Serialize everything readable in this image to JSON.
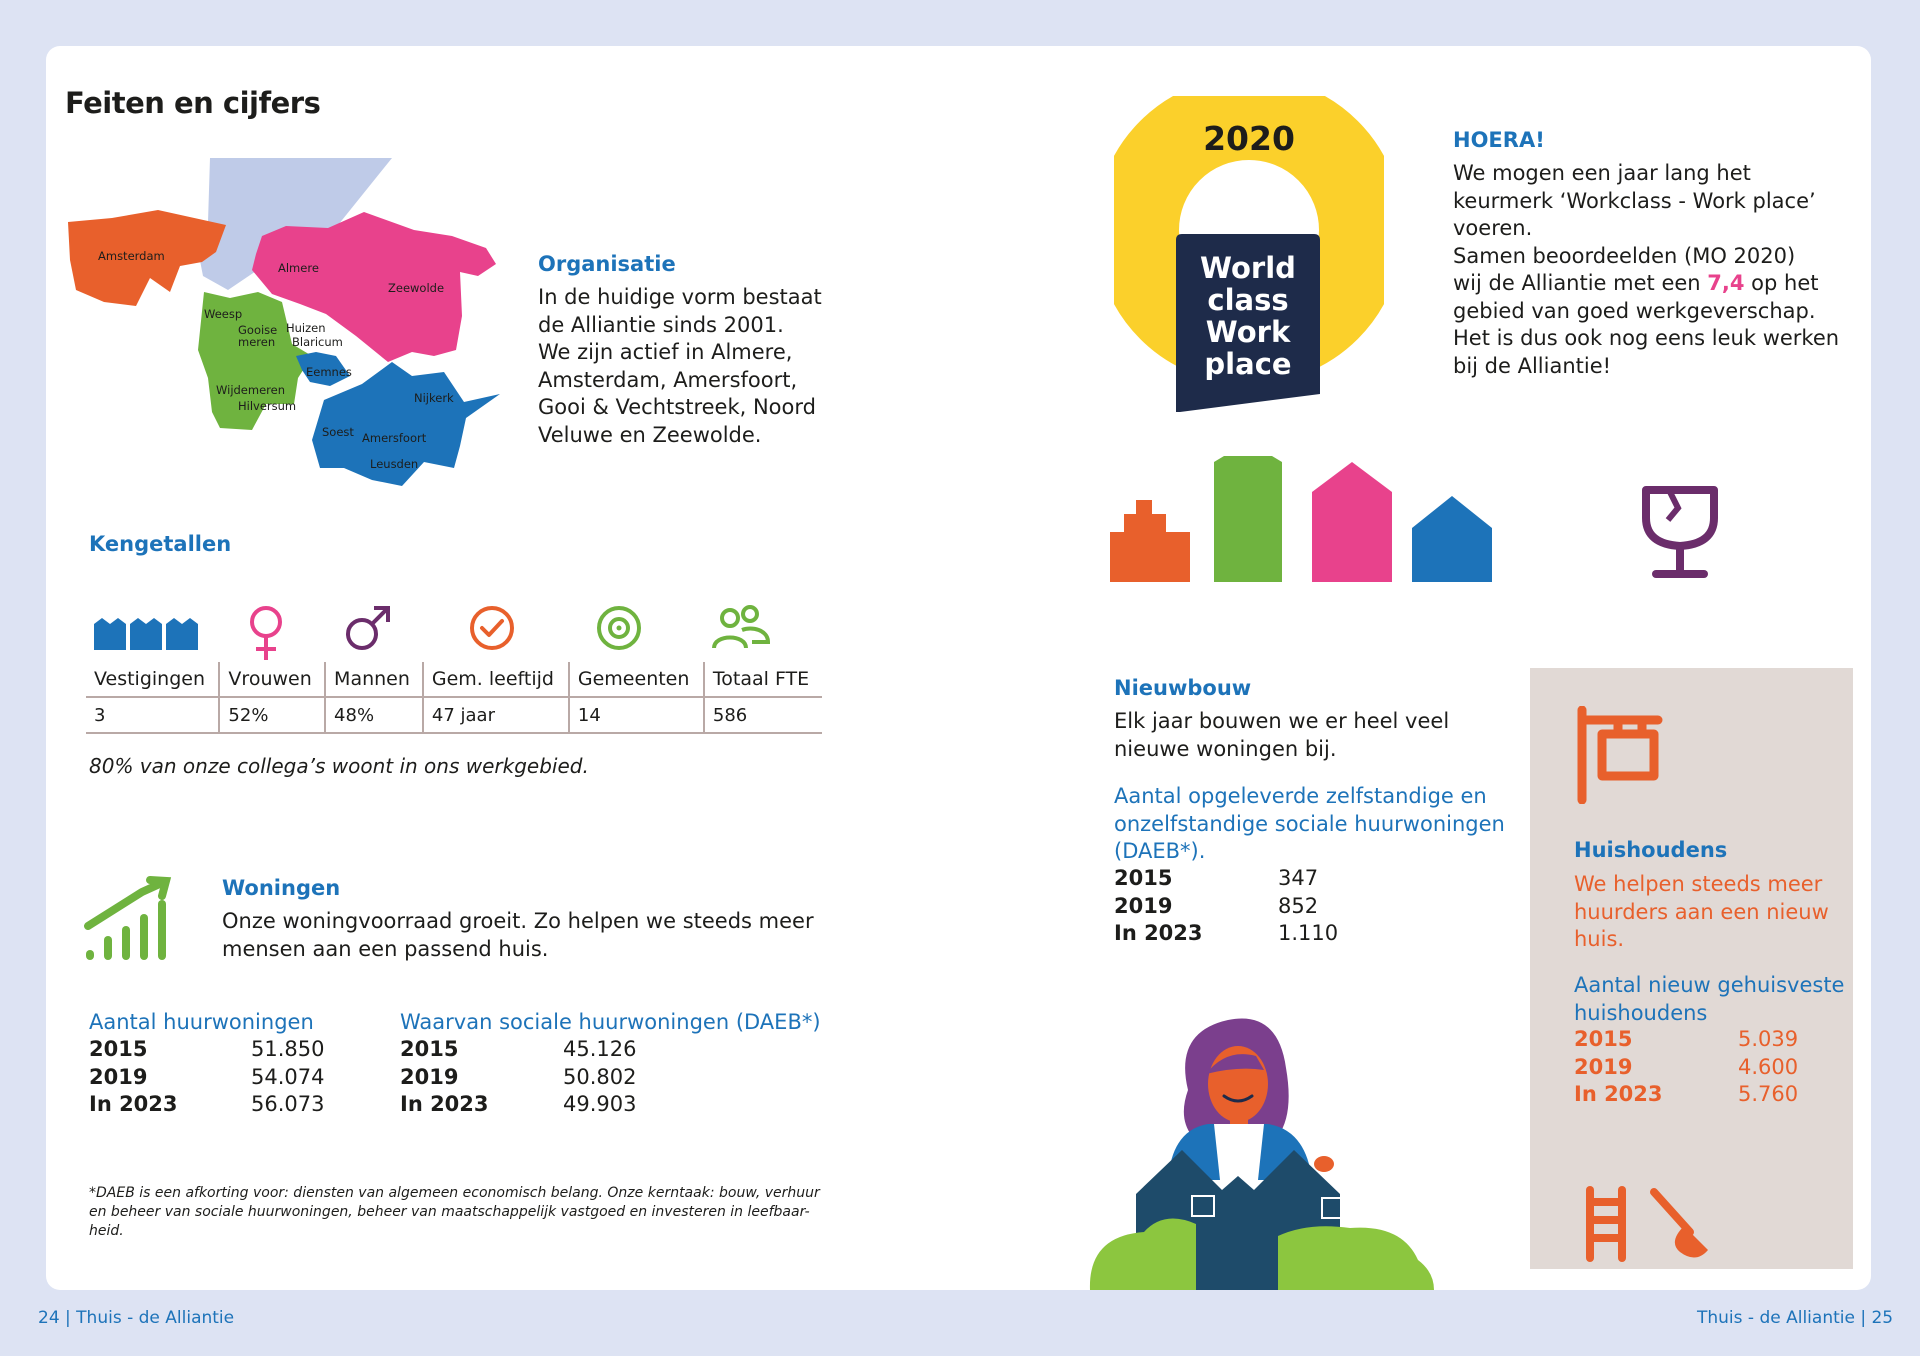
{
  "page": {
    "title": "Feiten en cijfers",
    "footer_left": "24 | Thuis - de Alliantie",
    "footer_right": "Thuis - de Alliantie | 25"
  },
  "organisatie": {
    "heading": "Organisatie",
    "text_lines": [
      "In de huidige vorm bestaat",
      "de Alliantie sinds 2001.",
      "We zijn actief in Almere,",
      "Amsterdam, Amersfoort,",
      "Gooi & Vechtstreek, Noord",
      "Veluwe en Zeewolde."
    ]
  },
  "map": {
    "labels": {
      "amsterdam": "Amsterdam",
      "almere": "Almere",
      "zeewolde": "Zeewolde",
      "weesp": "Weesp",
      "gooise_meren_1": "Gooise",
      "gooise_meren_2": "meren",
      "huizen": "Huizen",
      "blaricum": "Blaricum",
      "eemnes": "Eemnes",
      "wijdemeren": "Wijdemeren",
      "hilversum": "Hilversum",
      "nijkerk": "Nijkerk",
      "soest": "Soest",
      "amersfoort": "Amersfoort",
      "leusden": "Leusden"
    },
    "colors": {
      "amsterdam": "#e8602c",
      "almere": "#e8428c",
      "gooi": "#6fb33f",
      "utrecht": "#1d73b9",
      "water": "#bfcbe8"
    }
  },
  "kengetallen": {
    "heading": "Kengetallen",
    "columns": [
      {
        "icon": "buildings-icon",
        "label": "Vestigingen",
        "value": "3"
      },
      {
        "icon": "female-icon",
        "label": "Vrouwen",
        "value": "52%"
      },
      {
        "icon": "male-icon",
        "label": "Mannen",
        "value": "48%"
      },
      {
        "icon": "checkmark-circle-icon",
        "label": "Gem. leeftijd",
        "value": "47 jaar"
      },
      {
        "icon": "target-icon",
        "label": "Gemeenten",
        "value": "14"
      },
      {
        "icon": "people-icon",
        "label": "Totaal FTE",
        "value": "586"
      }
    ],
    "note": "80% van onze collega’s woont in ons werkgebied."
  },
  "woningen": {
    "heading": "Woningen",
    "text_lines": [
      "Onze woningvoorraad groeit. Zo helpen we steeds meer",
      "mensen aan een passend huis."
    ],
    "table1": {
      "title": "Aantal huurwoningen",
      "rows": [
        {
          "year": "2015",
          "value": "51.850"
        },
        {
          "year": "2019",
          "value": "54.074"
        },
        {
          "year": "In 2023",
          "value": "56.073"
        }
      ]
    },
    "table2": {
      "title": "Waarvan sociale huurwoningen (DAEB*)",
      "rows": [
        {
          "year": "2015",
          "value": "45.126"
        },
        {
          "year": "2019",
          "value": "50.802"
        },
        {
          "year": "In 2023",
          "value": "49.903"
        }
      ]
    },
    "footnote_lines": [
      "*DAEB is een afkorting voor: diensten van algemeen economisch belang. Onze kerntaak: bouw, verhuur",
      "en beheer van sociale huurwoningen, beheer van maatschappelijk vastgoed en investeren in leefbaar-",
      "heid."
    ]
  },
  "badge": {
    "year": "2020",
    "lines": [
      "World",
      "class",
      "Work",
      "place"
    ]
  },
  "hoera": {
    "heading": "HOERA!",
    "line1": "We mogen een jaar lang het",
    "line2": "keurmerk ‘Workclass - Work place’",
    "line3": "voeren.",
    "line4": "Samen beoordeelden (MO 2020)",
    "line5_pre": "wij de Alliantie met een ",
    "score": "7,4",
    "line5_post": " op het",
    "line6": "gebied van goed werkgeverschap.",
    "line7": "Het is dus ook nog eens leuk werken",
    "line8": "bij de Alliantie!"
  },
  "nieuwbouw": {
    "heading": "Nieuwbouw",
    "text_lines": [
      "Elk jaar bouwen we er heel veel",
      "nieuwe woningen bij."
    ],
    "sub_lines": [
      "Aantal opgeleverde zelfstandige en",
      "onzelfstandige sociale huurwoningen",
      "(DAEB*)."
    ],
    "rows": [
      {
        "year": "2015",
        "value": "347"
      },
      {
        "year": "2019",
        "value": "852"
      },
      {
        "year": "In 2023",
        "value": "1.110"
      }
    ]
  },
  "huishoudens": {
    "heading": "Huishoudens",
    "text_lines": [
      "We helpen steeds meer",
      "huurders aan een nieuw",
      "huis."
    ],
    "sub_lines": [
      "Aantal nieuw gehuisveste",
      "huishoudens"
    ],
    "rows": [
      {
        "year": "2015",
        "value": "5.039"
      },
      {
        "year": "2019",
        "value": "4.600"
      },
      {
        "year": "In 2023",
        "value": "5.760"
      }
    ]
  },
  "colors": {
    "blue": "#1d73b9",
    "orange": "#e8602c",
    "pink": "#e8428c",
    "green": "#6fb33f",
    "purple": "#6b2d6b",
    "yellow": "#fbd02b",
    "navy": "#1e2b4a",
    "beige": "#e1d9d5"
  }
}
